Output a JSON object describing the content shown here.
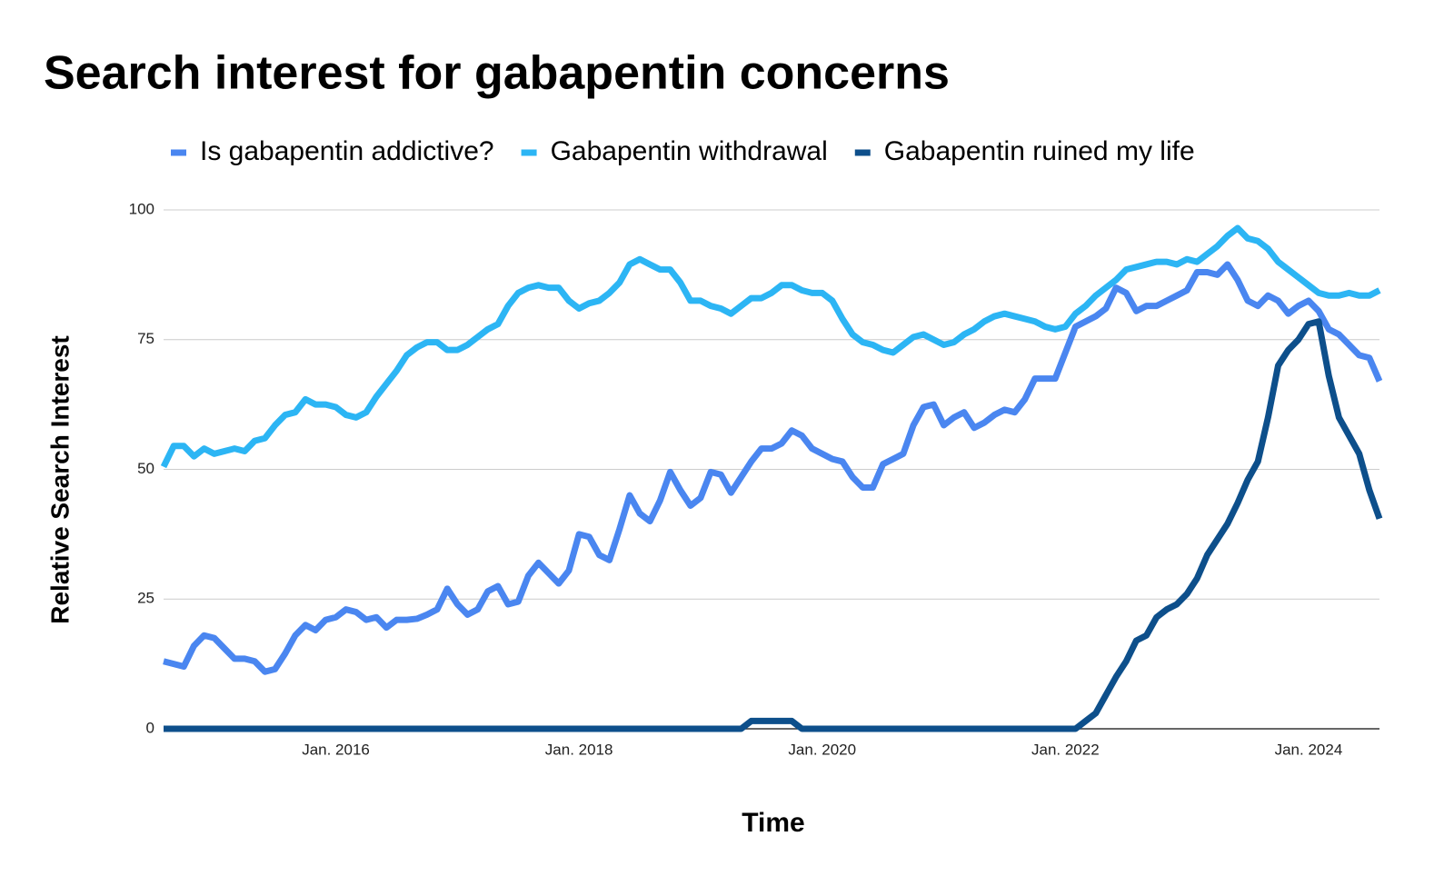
{
  "chart_data": {
    "type": "line",
    "title": "Search interest for gabapentin concerns",
    "x_label": "Time",
    "y_label": "Relative Search Interest",
    "x": [
      "2014-08",
      "2014-09",
      "2014-10",
      "2014-11",
      "2014-12",
      "2015-01",
      "2015-02",
      "2015-03",
      "2015-04",
      "2015-05",
      "2015-06",
      "2015-07",
      "2015-08",
      "2015-09",
      "2015-10",
      "2015-11",
      "2015-12",
      "2016-01",
      "2016-02",
      "2016-03",
      "2016-04",
      "2016-05",
      "2016-06",
      "2016-07",
      "2016-08",
      "2016-09",
      "2016-10",
      "2016-11",
      "2016-12",
      "2017-01",
      "2017-02",
      "2017-03",
      "2017-04",
      "2017-05",
      "2017-06",
      "2017-07",
      "2017-08",
      "2017-09",
      "2017-10",
      "2017-11",
      "2017-12",
      "2018-01",
      "2018-02",
      "2018-03",
      "2018-04",
      "2018-05",
      "2018-06",
      "2018-07",
      "2018-08",
      "2018-09",
      "2018-10",
      "2018-11",
      "2018-12",
      "2019-01",
      "2019-02",
      "2019-03",
      "2019-04",
      "2019-05",
      "2019-06",
      "2019-07",
      "2019-08",
      "2019-09",
      "2019-10",
      "2019-11",
      "2019-12",
      "2020-01",
      "2020-02",
      "2020-03",
      "2020-04",
      "2020-05",
      "2020-06",
      "2020-07",
      "2020-08",
      "2020-09",
      "2020-10",
      "2020-11",
      "2020-12",
      "2021-01",
      "2021-02",
      "2021-03",
      "2021-04",
      "2021-05",
      "2021-06",
      "2021-07",
      "2021-08",
      "2021-09",
      "2021-10",
      "2021-11",
      "2021-12",
      "2022-01",
      "2022-02",
      "2022-03",
      "2022-04",
      "2022-05",
      "2022-06",
      "2022-07",
      "2022-08",
      "2022-09",
      "2022-10",
      "2022-11",
      "2022-12",
      "2023-01",
      "2023-02",
      "2023-03",
      "2023-04",
      "2023-05",
      "2023-06",
      "2023-07",
      "2023-08",
      "2023-09",
      "2023-10",
      "2023-11",
      "2023-12",
      "2024-01",
      "2024-02",
      "2024-03",
      "2024-04",
      "2024-05",
      "2024-06",
      "2024-07",
      "2024-08"
    ],
    "xlim": [
      "2014-08",
      "2024-08"
    ],
    "xticks": [
      {
        "value": "2016-01",
        "label": "Jan. 2016"
      },
      {
        "value": "2018-01",
        "label": "Jan. 2018"
      },
      {
        "value": "2020-01",
        "label": "Jan. 2020"
      },
      {
        "value": "2022-01",
        "label": "Jan. 2022"
      },
      {
        "value": "2024-01",
        "label": "Jan. 2024"
      }
    ],
    "ylim": [
      0,
      100
    ],
    "yticks": [
      0,
      25,
      50,
      75,
      100
    ],
    "grid": true,
    "legend": "top",
    "series": [
      {
        "name": "Is gabapentin addictive?",
        "color": "#4a86f0",
        "values": [
          13,
          12.5,
          12,
          16,
          18,
          17.5,
          15.5,
          13.5,
          13.5,
          13,
          11,
          11.5,
          14.5,
          18,
          20,
          19,
          21,
          21.5,
          23,
          22.5,
          21,
          21.5,
          19.5,
          21,
          21,
          21.2,
          22,
          23,
          27,
          24,
          22,
          23,
          26.5,
          27.5,
          24,
          24.5,
          29.5,
          32,
          30,
          28,
          30.5,
          37.5,
          37,
          33.5,
          32.5,
          38.5,
          45,
          41.5,
          40,
          44,
          49.5,
          46,
          43,
          44.5,
          49.5,
          49,
          45.5,
          48.5,
          51.5,
          54,
          54,
          55,
          57.5,
          56.5,
          54,
          53,
          52,
          51.5,
          48.5,
          46.5,
          46.5,
          51,
          52,
          53,
          58.5,
          62,
          62.5,
          58.5,
          60,
          61,
          58,
          59,
          60.5,
          61.5,
          61,
          63.5,
          67.5,
          67.5,
          67.5,
          72.5,
          77.5,
          78.5,
          79.5,
          81,
          85,
          84,
          80.5,
          81.5,
          81.5,
          82.5,
          83.5,
          84.5,
          88,
          88,
          87.5,
          89.5,
          86.5,
          82.5,
          81.5,
          83.5,
          82.5,
          80,
          81.5,
          82.5,
          80.5,
          77,
          76,
          74,
          72,
          71.5,
          67
        ]
      },
      {
        "name": "Gabapentin withdrawal",
        "color": "#2cb5f4",
        "values": [
          50.5,
          54.5,
          54.5,
          52.5,
          54,
          53,
          53.5,
          54,
          53.5,
          55.5,
          56,
          58.5,
          60.5,
          61,
          63.5,
          62.5,
          62.5,
          62,
          60.5,
          60,
          61,
          64,
          66.5,
          69,
          72,
          73.5,
          74.5,
          74.5,
          73,
          73,
          74,
          75.5,
          77,
          78,
          81.5,
          84,
          85,
          85.5,
          85,
          85,
          82.5,
          81,
          82,
          82.5,
          84,
          86,
          89.5,
          90.5,
          89.5,
          88.5,
          88.5,
          86,
          82.5,
          82.5,
          81.5,
          81,
          80,
          81.5,
          83,
          83,
          84,
          85.5,
          85.5,
          84.5,
          84,
          84,
          82.5,
          79,
          76,
          74.5,
          74,
          73,
          72.5,
          74,
          75.5,
          76,
          75,
          74,
          74.5,
          76,
          77,
          78.5,
          79.5,
          80,
          79.5,
          79,
          78.5,
          77.5,
          77,
          77.5,
          80,
          81.5,
          83.5,
          85,
          86.5,
          88.5,
          89,
          89.5,
          90,
          90,
          89.5,
          90.5,
          90,
          91.5,
          93,
          95,
          96.5,
          94.5,
          94,
          92.5,
          90,
          88.5,
          87,
          85.5,
          84,
          83.5,
          83.5,
          84,
          83.5,
          83.5,
          84.5
        ]
      },
      {
        "name": "Gabapentin ruined my life",
        "color": "#0d4f8b",
        "values": [
          0,
          0,
          0,
          0,
          0,
          0,
          0,
          0,
          0,
          0,
          0,
          0,
          0,
          0,
          0,
          0,
          0,
          0,
          0,
          0,
          0,
          0,
          0,
          0,
          0,
          0,
          0,
          0,
          0,
          0,
          0,
          0,
          0,
          0,
          0,
          0,
          0,
          0,
          0,
          0,
          0,
          0,
          0,
          0,
          0,
          0,
          0,
          0,
          0,
          0,
          0,
          0,
          0,
          0,
          0,
          0,
          0,
          0,
          1.5,
          1.5,
          1.5,
          1.5,
          1.5,
          0,
          0,
          0,
          0,
          0,
          0,
          0,
          0,
          0,
          0,
          0,
          0,
          0,
          0,
          0,
          0,
          0,
          0,
          0,
          0,
          0,
          0,
          0,
          0,
          0,
          0,
          0,
          0,
          1.5,
          3,
          6.5,
          10,
          13,
          17,
          18,
          21.5,
          23,
          24,
          26,
          29,
          33.5,
          36.5,
          39.5,
          43.5,
          48,
          51.5,
          60,
          70,
          73,
          75,
          78,
          78.5,
          68,
          60,
          56.5,
          53,
          46,
          40.5
        ]
      }
    ]
  }
}
